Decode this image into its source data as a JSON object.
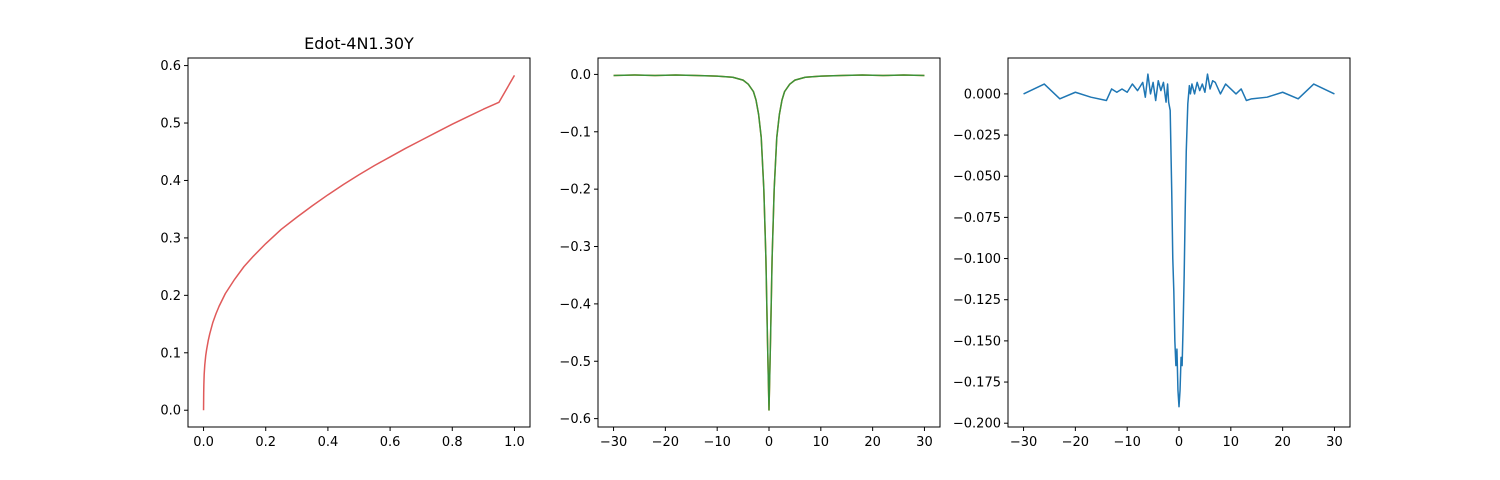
{
  "chart_data": [
    {
      "type": "line",
      "title": "Edot-4N1.30Y",
      "xlabel": "",
      "ylabel": "",
      "xlim": [
        -0.05,
        1.05
      ],
      "ylim": [
        -0.0292,
        0.6132
      ],
      "xticks": [
        0.0,
        0.2,
        0.4,
        0.6,
        0.8,
        1.0
      ],
      "xtick_labels": [
        "0.0",
        "0.2",
        "0.4",
        "0.6",
        "0.8",
        "1.0"
      ],
      "yticks": [
        0.0,
        0.1,
        0.2,
        0.3,
        0.4,
        0.5,
        0.6
      ],
      "ytick_labels": [
        "0.0",
        "0.1",
        "0.2",
        "0.3",
        "0.4",
        "0.5",
        "0.6"
      ],
      "grid": false,
      "series": [
        {
          "color": "#e05a5a",
          "x": [
            0.0,
            0.0005,
            0.001,
            0.002,
            0.004,
            0.007,
            0.01,
            0.015,
            0.02,
            0.03,
            0.04,
            0.05,
            0.07,
            0.1,
            0.13,
            0.16,
            0.2,
            0.25,
            0.3,
            0.35,
            0.4,
            0.45,
            0.5,
            0.55,
            0.6,
            0.65,
            0.7,
            0.75,
            0.8,
            0.85,
            0.9,
            0.95,
            1.0
          ],
          "values": [
            0.0,
            0.03,
            0.045,
            0.062,
            0.079,
            0.095,
            0.106,
            0.121,
            0.133,
            0.153,
            0.168,
            0.181,
            0.203,
            0.228,
            0.25,
            0.268,
            0.29,
            0.315,
            0.336,
            0.356,
            0.375,
            0.393,
            0.41,
            0.426,
            0.441,
            0.456,
            0.47,
            0.484,
            0.498,
            0.511,
            0.524,
            0.536,
            0.583
          ]
        }
      ]
    },
    {
      "type": "line",
      "title": "",
      "xlabel": "",
      "ylabel": "",
      "xlim": [
        -33,
        33
      ],
      "ylim": [
        -0.6146,
        0.0286
      ],
      "xticks": [
        -30,
        -20,
        -10,
        0,
        10,
        20,
        30
      ],
      "xtick_labels": [
        "−30",
        "−20",
        "−10",
        "0",
        "10",
        "20",
        "30"
      ],
      "yticks": [
        0.0,
        -0.1,
        -0.2,
        -0.3,
        -0.4,
        -0.5,
        -0.6
      ],
      "ytick_labels": [
        "0.0",
        "−0.1",
        "−0.2",
        "−0.3",
        "−0.4",
        "−0.5",
        "−0.6"
      ],
      "grid": false,
      "series": [
        {
          "color": "#ff7f0e",
          "x": [
            -30,
            -26,
            -22,
            -18,
            -14,
            -10,
            -7,
            -5,
            -4,
            -3,
            -2.5,
            -2,
            -1.5,
            -1,
            -0.6,
            -0.3,
            0,
            0.3,
            0.6,
            1,
            1.5,
            2,
            2.5,
            3,
            4,
            5,
            7,
            10,
            14,
            18,
            22,
            26,
            30
          ],
          "values": [
            -0.002,
            -0.001,
            -0.002,
            -0.001,
            -0.002,
            -0.003,
            -0.005,
            -0.01,
            -0.017,
            -0.03,
            -0.045,
            -0.07,
            -0.11,
            -0.2,
            -0.32,
            -0.46,
            -0.585,
            -0.46,
            -0.32,
            -0.2,
            -0.11,
            -0.07,
            -0.045,
            -0.03,
            -0.017,
            -0.01,
            -0.005,
            -0.003,
            -0.002,
            -0.001,
            -0.002,
            -0.001,
            -0.002
          ]
        },
        {
          "color": "#3a923a",
          "x": [
            -30,
            -26,
            -22,
            -18,
            -14,
            -10,
            -7,
            -5,
            -4,
            -3,
            -2.5,
            -2,
            -1.5,
            -1,
            -0.6,
            -0.3,
            0,
            0.3,
            0.6,
            1,
            1.5,
            2,
            2.5,
            3,
            4,
            5,
            7,
            10,
            14,
            18,
            22,
            26,
            30
          ],
          "values": [
            -0.002,
            -0.001,
            -0.002,
            -0.001,
            -0.002,
            -0.003,
            -0.005,
            -0.01,
            -0.017,
            -0.03,
            -0.045,
            -0.07,
            -0.11,
            -0.2,
            -0.32,
            -0.46,
            -0.585,
            -0.46,
            -0.32,
            -0.2,
            -0.11,
            -0.07,
            -0.045,
            -0.03,
            -0.017,
            -0.01,
            -0.005,
            -0.003,
            -0.002,
            -0.001,
            -0.002,
            -0.001,
            -0.002
          ]
        }
      ]
    },
    {
      "type": "line",
      "title": "",
      "xlabel": "",
      "ylabel": "",
      "xlim": [
        -33,
        33
      ],
      "ylim": [
        -0.2023,
        0.0218
      ],
      "xticks": [
        -30,
        -20,
        -10,
        0,
        10,
        20,
        30
      ],
      "xtick_labels": [
        "−30",
        "−20",
        "−10",
        "0",
        "10",
        "20",
        "30"
      ],
      "yticks": [
        0.0,
        -0.025,
        -0.05,
        -0.075,
        -0.1,
        -0.125,
        -0.15,
        -0.175,
        -0.2
      ],
      "ytick_labels": [
        "0.000",
        "−0.025",
        "−0.050",
        "−0.075",
        "−0.100",
        "−0.125",
        "−0.150",
        "−0.175",
        "−0.200"
      ],
      "grid": false,
      "series": [
        {
          "color": "#1f77b4",
          "x": [
            -30,
            -26,
            -23,
            -20,
            -17,
            -14,
            -13,
            -12,
            -11,
            -10,
            -9,
            -8,
            -7,
            -6.5,
            -6,
            -5.5,
            -5,
            -4.5,
            -4,
            -3.5,
            -3,
            -2.5,
            -2.2,
            -2,
            -1.7,
            -1.4,
            -1.2,
            -1,
            -0.8,
            -0.6,
            -0.4,
            -0.2,
            0,
            0.2,
            0.4,
            0.6,
            0.8,
            1,
            1.2,
            1.4,
            1.7,
            2,
            2.2,
            2.5,
            3,
            3.5,
            4,
            4.5,
            5,
            5.5,
            6,
            6.5,
            7,
            8,
            9,
            10,
            11,
            12,
            13,
            14,
            17,
            20,
            23,
            26,
            30
          ],
          "values": [
            0.0,
            0.006,
            -0.003,
            0.001,
            -0.002,
            -0.004,
            0.003,
            0.001,
            0.003,
            0.001,
            0.006,
            0.002,
            0.007,
            -0.002,
            0.012,
            0.0,
            0.007,
            -0.004,
            0.008,
            0.002,
            0.007,
            -0.005,
            0.006,
            -0.005,
            -0.01,
            -0.06,
            -0.1,
            -0.12,
            -0.15,
            -0.165,
            -0.155,
            -0.18,
            -0.19,
            -0.18,
            -0.16,
            -0.165,
            -0.14,
            -0.11,
            -0.07,
            -0.035,
            -0.006,
            0.005,
            0.0,
            0.006,
            0.0,
            0.007,
            0.002,
            0.006,
            0.001,
            0.012,
            0.003,
            0.008,
            0.007,
            0.0,
            0.006,
            0.003,
            0.0,
            0.003,
            -0.004,
            -0.003,
            -0.002,
            0.001,
            -0.003,
            0.006,
            0.0
          ]
        }
      ]
    }
  ]
}
